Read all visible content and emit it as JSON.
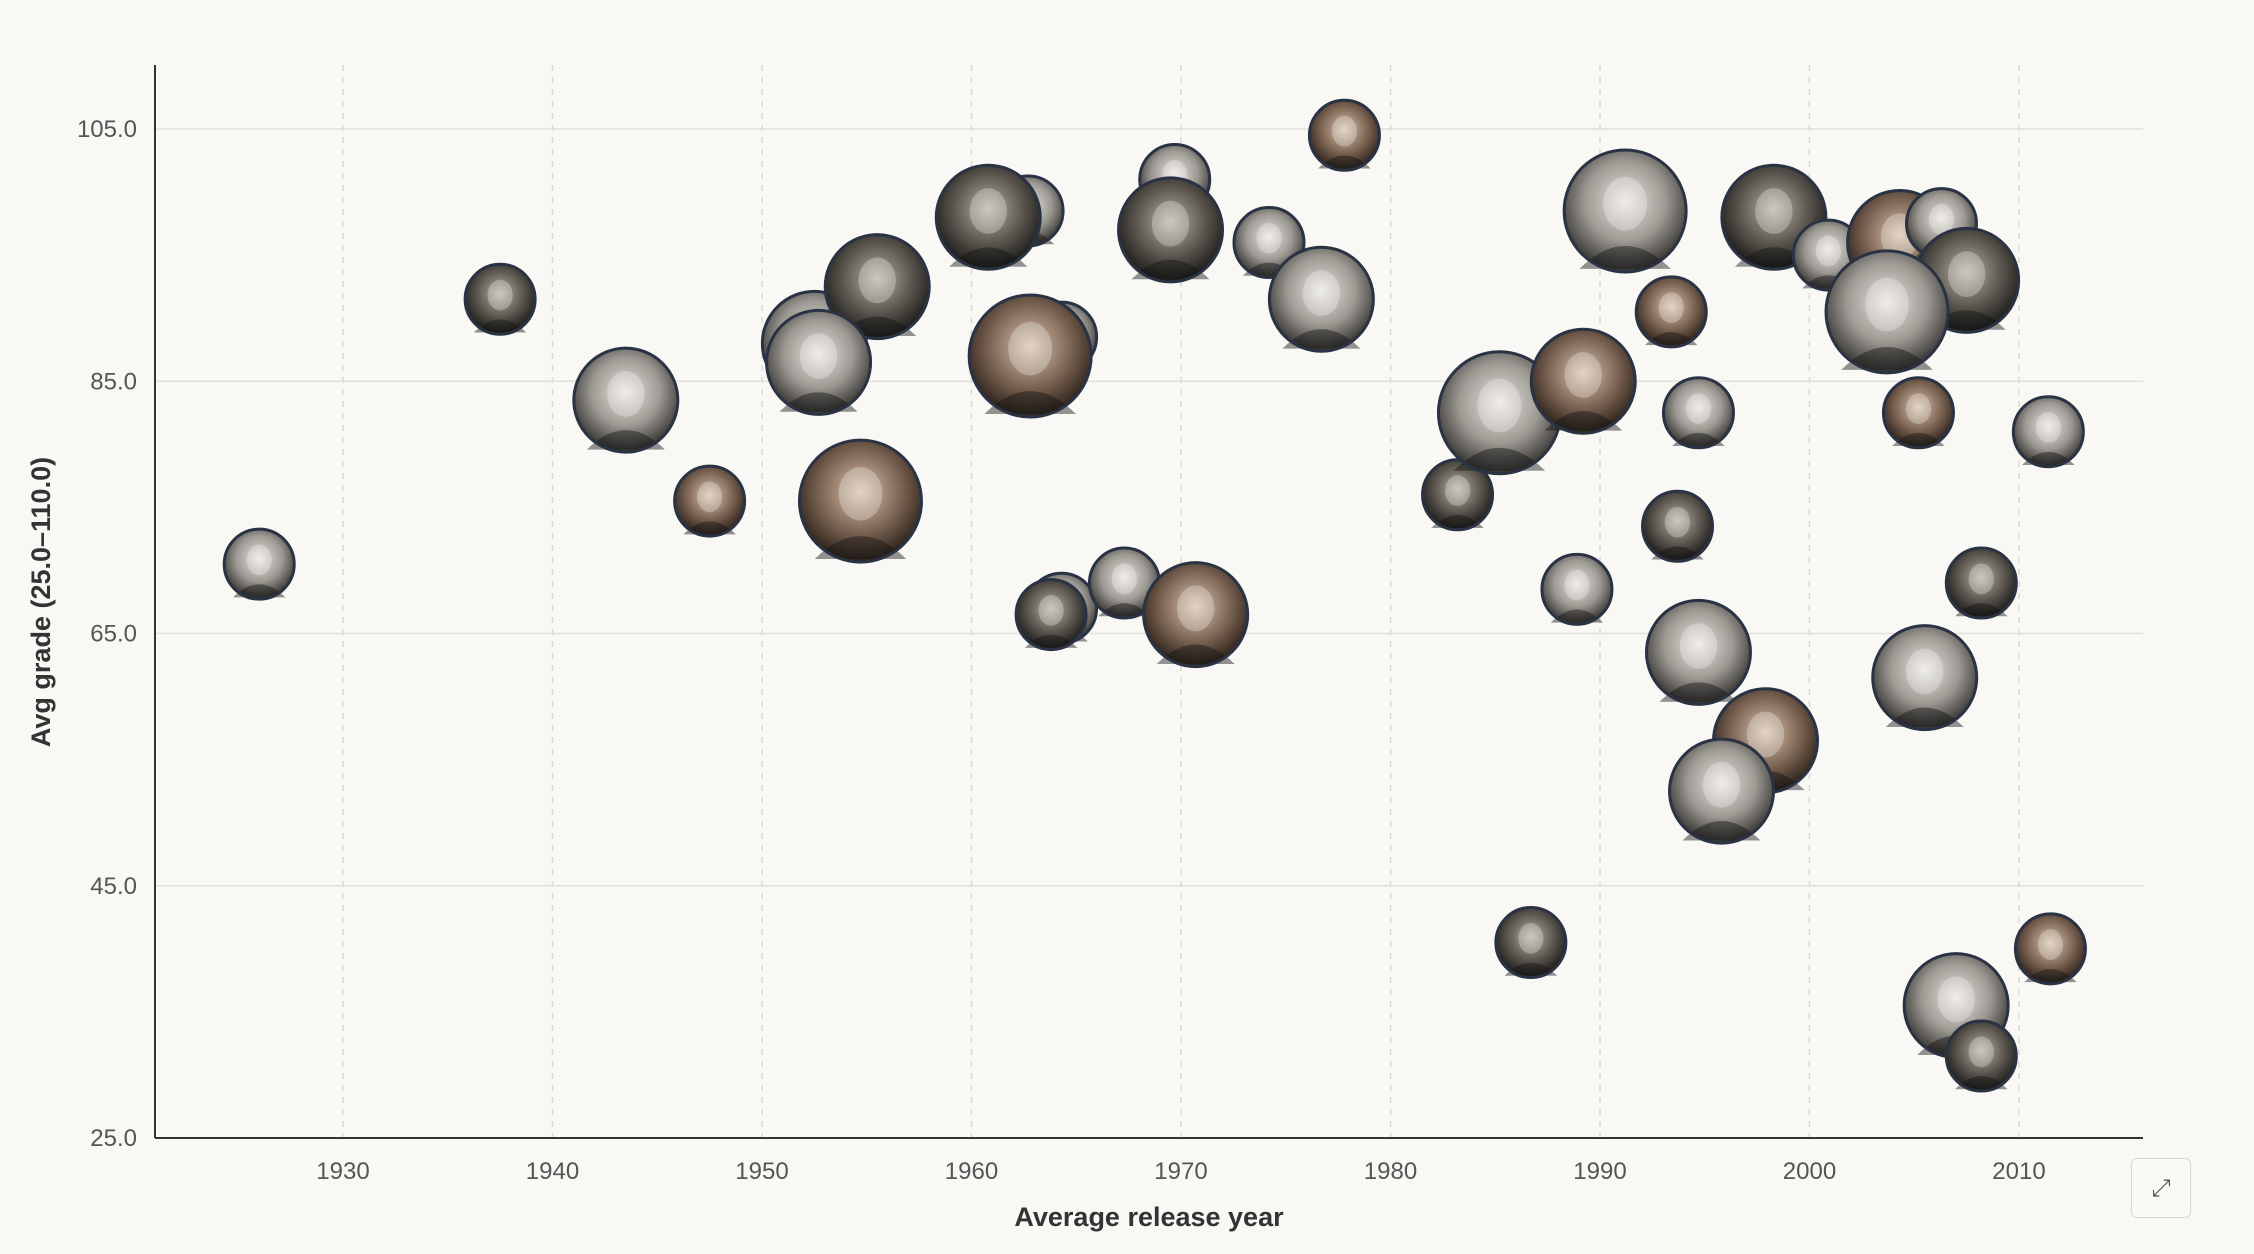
{
  "chart_data": {
    "type": "scatter",
    "xlabel": "Average release year",
    "ylabel": "Avg grade (25.0–110.0)",
    "xlim": [
      1921,
      2016
    ],
    "ylim": [
      25,
      110
    ],
    "x_ticks": [
      "1930",
      "1940",
      "1950",
      "1960",
      "1970",
      "1980",
      "1990",
      "2000",
      "2010"
    ],
    "y_ticks": [
      "25.0",
      "45.0",
      "65.0",
      "85.0",
      "105.0"
    ],
    "grid": true,
    "marker": "circular director portrait",
    "points": [
      {
        "x": 1926.0,
        "y": 70.5,
        "size": "s"
      },
      {
        "x": 1937.5,
        "y": 91.5,
        "size": "s"
      },
      {
        "x": 1943.5,
        "y": 83.5,
        "size": "m"
      },
      {
        "x": 1947.5,
        "y": 75.5,
        "size": "s"
      },
      {
        "x": 1952.5,
        "y": 88.0,
        "size": "m"
      },
      {
        "x": 1955.5,
        "y": 92.5,
        "size": "m"
      },
      {
        "x": 1952.7,
        "y": 86.5,
        "size": "m"
      },
      {
        "x": 1954.7,
        "y": 75.5,
        "size": "l"
      },
      {
        "x": 1962.7,
        "y": 98.5,
        "size": "s"
      },
      {
        "x": 1960.8,
        "y": 98.0,
        "size": "m"
      },
      {
        "x": 1964.3,
        "y": 88.5,
        "size": "s"
      },
      {
        "x": 1962.8,
        "y": 87.0,
        "size": "l"
      },
      {
        "x": 1964.3,
        "y": 67.0,
        "size": "s"
      },
      {
        "x": 1963.8,
        "y": 66.5,
        "size": "s"
      },
      {
        "x": 1967.3,
        "y": 69.0,
        "size": "s"
      },
      {
        "x": 1970.7,
        "y": 66.5,
        "size": "m"
      },
      {
        "x": 1969.7,
        "y": 101.0,
        "size": "s"
      },
      {
        "x": 1969.5,
        "y": 97.0,
        "size": "m"
      },
      {
        "x": 1974.2,
        "y": 96.0,
        "size": "s"
      },
      {
        "x": 1977.8,
        "y": 104.5,
        "size": "s"
      },
      {
        "x": 1976.7,
        "y": 91.5,
        "size": "m"
      },
      {
        "x": 1983.2,
        "y": 76.0,
        "size": "s"
      },
      {
        "x": 1985.2,
        "y": 82.5,
        "size": "l"
      },
      {
        "x": 1989.2,
        "y": 85.0,
        "size": "m"
      },
      {
        "x": 1988.9,
        "y": 68.5,
        "size": "s"
      },
      {
        "x": 1986.7,
        "y": 40.5,
        "size": "s"
      },
      {
        "x": 1991.2,
        "y": 98.5,
        "size": "l"
      },
      {
        "x": 1993.4,
        "y": 90.5,
        "size": "s"
      },
      {
        "x": 1994.7,
        "y": 82.5,
        "size": "s"
      },
      {
        "x": 1993.7,
        "y": 73.5,
        "size": "s"
      },
      {
        "x": 1994.7,
        "y": 63.5,
        "size": "m"
      },
      {
        "x": 1997.9,
        "y": 56.5,
        "size": "m"
      },
      {
        "x": 1995.8,
        "y": 52.5,
        "size": "m"
      },
      {
        "x": 1998.3,
        "y": 98.0,
        "size": "m"
      },
      {
        "x": 2000.9,
        "y": 95.0,
        "size": "s"
      },
      {
        "x": 2004.3,
        "y": 96.0,
        "size": "m"
      },
      {
        "x": 2006.3,
        "y": 97.5,
        "size": "s"
      },
      {
        "x": 2007.5,
        "y": 93.0,
        "size": "m"
      },
      {
        "x": 2003.7,
        "y": 90.5,
        "size": "l"
      },
      {
        "x": 2005.2,
        "y": 82.5,
        "size": "s"
      },
      {
        "x": 2005.5,
        "y": 61.5,
        "size": "m"
      },
      {
        "x": 2008.2,
        "y": 69.0,
        "size": "s"
      },
      {
        "x": 2011.4,
        "y": 81.0,
        "size": "s"
      },
      {
        "x": 2011.5,
        "y": 40.0,
        "size": "s"
      },
      {
        "x": 2007.0,
        "y": 35.5,
        "size": "m"
      },
      {
        "x": 2008.2,
        "y": 31.5,
        "size": "s"
      }
    ]
  },
  "controls": {
    "expand_icon": "⤢",
    "expand_icon_name": "expand-icon"
  },
  "colors": {
    "background": "#f9f8f5",
    "gridline": "#e2e0db",
    "axis": "#333333",
    "marker_stroke": "#2a3344"
  }
}
